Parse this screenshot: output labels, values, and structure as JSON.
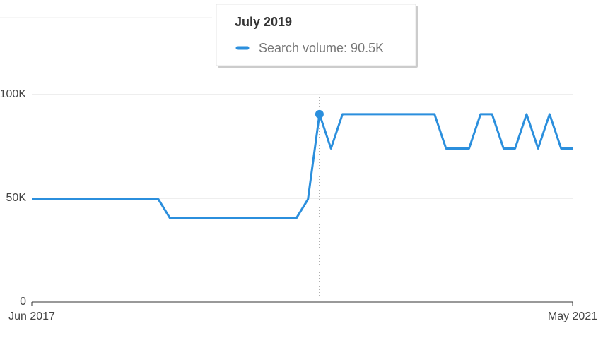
{
  "chart_data": {
    "type": "line",
    "categories": [
      "Jun 2017",
      null,
      null,
      null,
      null,
      null,
      null,
      null,
      null,
      null,
      null,
      null,
      null,
      null,
      null,
      null,
      null,
      null,
      null,
      null,
      null,
      null,
      null,
      null,
      null,
      null,
      null,
      null,
      null,
      null,
      null,
      null,
      null,
      null,
      null,
      null,
      null,
      null,
      null,
      null,
      null,
      null,
      null,
      null,
      null,
      null,
      null,
      "May 2021"
    ],
    "series": [
      {
        "name": "Search volume",
        "color": "#2b8fdd",
        "values": [
          49500,
          49500,
          49500,
          49500,
          49500,
          49500,
          49500,
          49500,
          49500,
          49500,
          49500,
          49500,
          40500,
          40500,
          40500,
          40500,
          40500,
          40500,
          40500,
          40500,
          40500,
          40500,
          40500,
          40500,
          49500,
          90500,
          74000,
          90500,
          90500,
          90500,
          90500,
          90500,
          90500,
          90500,
          90500,
          90500,
          74000,
          74000,
          74000,
          90500,
          90500,
          74000,
          74000,
          90500,
          74000,
          90500,
          74000,
          74000
        ]
      }
    ],
    "ylim": [
      0,
      100000
    ],
    "yticks": [
      0,
      {
        "value": 50000,
        "label": "50K"
      },
      {
        "value": 100000,
        "label": "100K"
      }
    ],
    "grid": true,
    "highlight": 25,
    "tooltip": {
      "title": "July 2019",
      "label": "Search volume: 90.5K"
    }
  }
}
